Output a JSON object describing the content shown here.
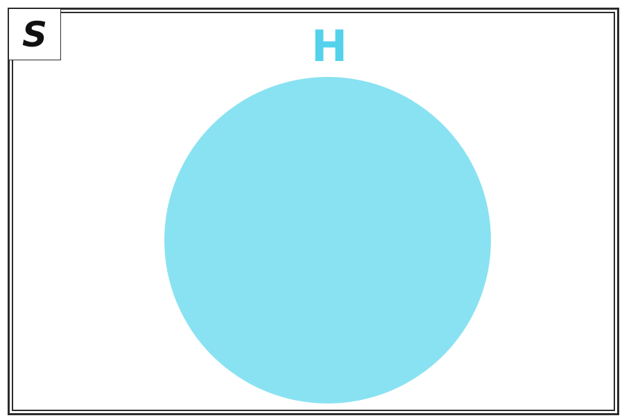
{
  "universe": {
    "label": "S"
  },
  "set": {
    "label": "H",
    "label_color": "#54d2ec",
    "fill_color": "#89e2f2"
  },
  "colors": {
    "border": "#2b2b2b",
    "background": "#ffffff"
  }
}
